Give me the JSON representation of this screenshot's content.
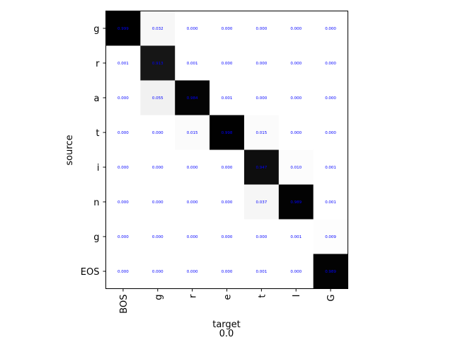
{
  "chart_data": {
    "type": "heatmap",
    "colormap": "grayscale (white = 0, black = 1)",
    "value_text_color": "#0000ff",
    "xlabel": "target",
    "ylabel": "source",
    "footer": "0.0",
    "x_categories": [
      "BOS",
      "g",
      "r",
      "e",
      "t",
      "I",
      "G"
    ],
    "y_categories": [
      "g",
      "r",
      "a",
      "t",
      "i",
      "n",
      "g",
      "EOS"
    ],
    "values": [
      [
        0.999,
        0.032,
        0.0,
        0.0,
        0.0,
        0.0,
        0.0
      ],
      [
        0.001,
        0.913,
        0.001,
        0.0,
        0.0,
        0.0,
        0.0
      ],
      [
        0.0,
        0.055,
        0.984,
        0.001,
        0.0,
        0.0,
        0.0
      ],
      [
        0.0,
        0.0,
        0.015,
        0.998,
        0.015,
        0.0,
        0.0
      ],
      [
        0.0,
        0.0,
        0.0,
        0.0,
        0.947,
        0.01,
        0.001
      ],
      [
        0.0,
        0.0,
        0.0,
        0.0,
        0.037,
        0.989,
        0.001
      ],
      [
        0.0,
        0.0,
        0.0,
        0.0,
        0.0,
        0.001,
        0.009
      ],
      [
        0.0,
        0.0,
        0.0,
        0.0,
        0.001,
        0.0,
        0.989
      ]
    ]
  }
}
